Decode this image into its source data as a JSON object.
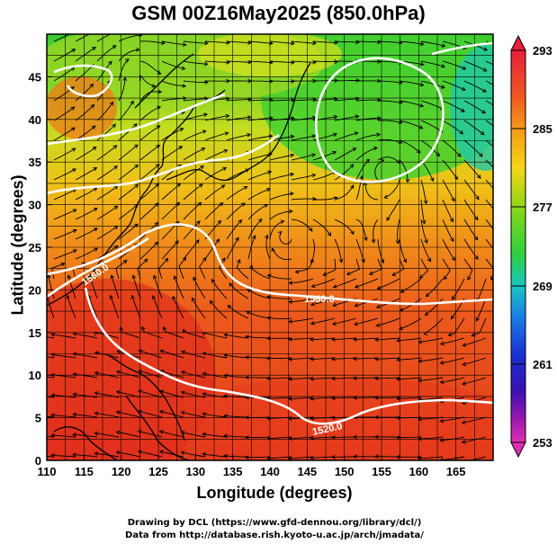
{
  "title": "GSM 00Z16May2025 (850.0hPa)",
  "axes": {
    "xlabel": "Longitude (degrees)",
    "ylabel": "Latitude  (degrees)",
    "xticks": [
      "110",
      "115",
      "120",
      "125",
      "130",
      "135",
      "140",
      "145",
      "150",
      "155",
      "160",
      "165"
    ],
    "yticks": [
      "0",
      "5",
      "10",
      "15",
      "20",
      "25",
      "30",
      "35",
      "40",
      "45"
    ]
  },
  "colorbar": {
    "labels": [
      "293",
      "285",
      "277",
      "269",
      "261",
      "253"
    ],
    "colors": [
      "#e6203a",
      "#f07a18",
      "#f5d614",
      "#3ed21a",
      "#19c7c0",
      "#1a7ee8",
      "#1a2fd0",
      "#3c10b0",
      "#c81aa8",
      "#e22db0"
    ]
  },
  "contour_labels": [
    "1560.0",
    "1560.0",
    "1520.0"
  ],
  "credits": {
    "line1": "Drawing by DCL (https://www.gfd-dennou.org/library/dcl/)",
    "line2": "Data from http://database.rish.kyoto-u.ac.jp/arch/jmadata/"
  },
  "colors": {
    "warm": "#e8341e",
    "mid": "#f58a18",
    "cool": "#6ccf22",
    "contour": "#ffffff"
  }
}
